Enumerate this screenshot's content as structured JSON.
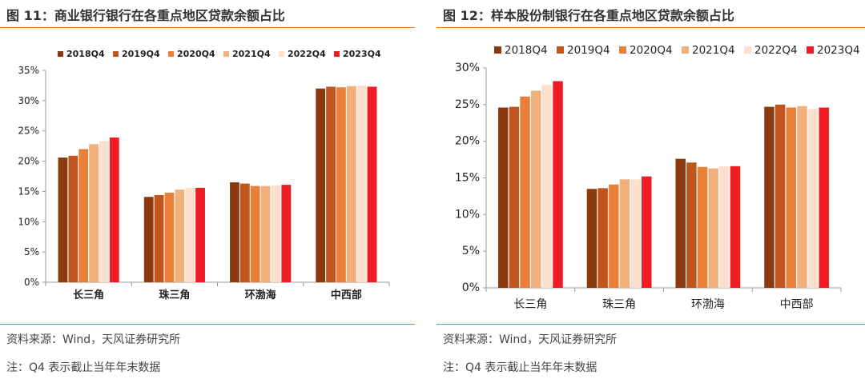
{
  "colors": {
    "accent_rule": "#e07a2e",
    "series": [
      "#8b3a0f",
      "#c0561b",
      "#e9803a",
      "#f2b07c",
      "#fbe1cd",
      "#ee1c25"
    ]
  },
  "left": {
    "title": "图 11：商业银行银行在各重点地区贷款余额占比",
    "source": "资料来源：Wind，天风证券研究所",
    "note": "注：Q4 表示截止当年年末数据"
  },
  "right": {
    "title": "图 12：样本股份制银行在各重点地区贷款余额占比",
    "source": "资料来源：Wind，天风证券研究所",
    "note": "注：Q4 表示截止当年年末数据"
  },
  "chart_data": [
    {
      "type": "bar",
      "title": "",
      "xlabel": "",
      "ylabel": "",
      "categories": [
        "长三角",
        "珠三角",
        "环渤海",
        "中西部"
      ],
      "ylim": [
        0,
        35
      ],
      "yticks": [
        "0%",
        "5%",
        "10%",
        "15%",
        "20%",
        "25%",
        "30%",
        "35%"
      ],
      "legend_position": "top",
      "grid": false,
      "series": [
        {
          "name": "2018Q4",
          "values": [
            20.6,
            14.1,
            16.5,
            32.0
          ]
        },
        {
          "name": "2019Q4",
          "values": [
            20.9,
            14.4,
            16.3,
            32.3
          ]
        },
        {
          "name": "2020Q4",
          "values": [
            22.0,
            14.8,
            15.9,
            32.2
          ]
        },
        {
          "name": "2021Q4",
          "values": [
            22.8,
            15.3,
            15.9,
            32.4
          ]
        },
        {
          "name": "2022Q4",
          "values": [
            23.3,
            15.6,
            16.0,
            32.5
          ]
        },
        {
          "name": "2023Q4",
          "values": [
            23.9,
            15.6,
            16.1,
            32.3
          ]
        }
      ]
    },
    {
      "type": "bar",
      "title": "",
      "xlabel": "",
      "ylabel": "",
      "categories": [
        "长三角",
        "珠三角",
        "环渤海",
        "中西部"
      ],
      "ylim": [
        0,
        30
      ],
      "yticks": [
        "0%",
        "5%",
        "10%",
        "15%",
        "20%",
        "25%",
        "30%"
      ],
      "legend_position": "top",
      "grid": false,
      "series": [
        {
          "name": "2018Q4",
          "values": [
            24.6,
            13.5,
            17.6,
            24.7
          ]
        },
        {
          "name": "2019Q4",
          "values": [
            24.7,
            13.6,
            17.1,
            25.0
          ]
        },
        {
          "name": "2020Q4",
          "values": [
            26.1,
            14.1,
            16.5,
            24.6
          ]
        },
        {
          "name": "2021Q4",
          "values": [
            26.9,
            14.8,
            16.3,
            24.8
          ]
        },
        {
          "name": "2022Q4",
          "values": [
            27.7,
            14.8,
            16.6,
            24.4
          ]
        },
        {
          "name": "2023Q4",
          "values": [
            28.2,
            15.2,
            16.6,
            24.6
          ]
        }
      ]
    }
  ]
}
